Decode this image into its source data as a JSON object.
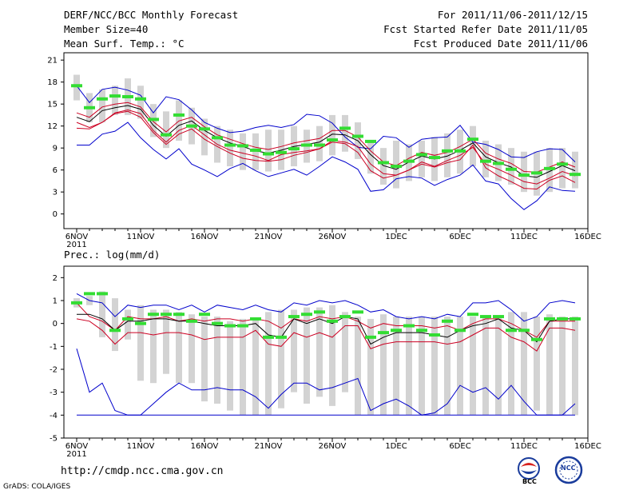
{
  "header": {
    "title": "DERF/NCC/BCC Monthly Forecast",
    "member_size": "Member Size=40",
    "variable": "Mean Surf. Temp.: °C",
    "period": "For 2011/11/06-2011/12/15",
    "start_date": "Fcst Started Refer Date 2011/11/05",
    "produced_date": "Fcst Produced Date 2011/11/06"
  },
  "footer": {
    "url": "http://cmdp.ncc.cma.gov.cn",
    "credit": "GrADS: COLA/IGES",
    "logo_left": "BCC",
    "logo_right": "NCC"
  },
  "colors": {
    "box": "#d3d3d3",
    "mean": "#000000",
    "percentile": "#cc0022",
    "extreme": "#0000cc",
    "median": "#33dd33"
  },
  "chart_data": [
    {
      "type": "box-line",
      "title": "Mean Surf. Temp.: °C",
      "ylim": [
        -2,
        22
      ],
      "yticks": [
        0,
        3,
        6,
        9,
        12,
        15,
        18,
        21
      ],
      "xtick_labels": [
        "6NOV\n2011",
        "11NOV",
        "16NOV",
        "21NOV",
        "26NOV",
        "1DEC",
        "6DEC",
        "11DEC",
        "16DEC"
      ],
      "xtick_days": [
        1,
        6,
        11,
        16,
        21,
        26,
        31,
        36,
        41
      ],
      "days": [
        1,
        2,
        3,
        4,
        5,
        6,
        7,
        8,
        9,
        10,
        11,
        12,
        13,
        14,
        15,
        16,
        17,
        18,
        19,
        20,
        21,
        22,
        23,
        24,
        25,
        26,
        27,
        28,
        29,
        30,
        31,
        32,
        33,
        34,
        35,
        36,
        37,
        38,
        39,
        40
      ],
      "series": [
        {
          "name": "box_low",
          "values": [
            15.5,
            12.5,
            12.5,
            13.5,
            13.5,
            13,
            10.5,
            9,
            10,
            9.5,
            8,
            7,
            6.5,
            6,
            6,
            5.8,
            6,
            6.5,
            7,
            7.2,
            8,
            8.5,
            7.5,
            5.5,
            4,
            3.5,
            4.5,
            5,
            4.5,
            5,
            5.5,
            6.5,
            5,
            4.5,
            4,
            3,
            2.5,
            3,
            3.5,
            3.5
          ]
        },
        {
          "name": "box_high",
          "values": [
            19,
            16.5,
            17,
            17.5,
            18.5,
            17.5,
            15,
            14,
            15.5,
            14.5,
            13,
            12,
            11.5,
            11,
            11,
            11.5,
            11.5,
            12,
            11.5,
            12,
            13.5,
            13.5,
            12.5,
            10,
            9,
            10,
            9.5,
            10,
            10.5,
            11,
            11.5,
            12,
            10,
            9.5,
            9,
            8.5,
            8.5,
            9,
            9,
            8.5
          ]
        },
        {
          "name": "max",
          "values": [
            17.5,
            15.2,
            17,
            17.3,
            16.9,
            16.2,
            13.8,
            16,
            15.6,
            14.2,
            12.5,
            11.7,
            11.1,
            11.3,
            11.8,
            12.1,
            11.8,
            12.2,
            13.6,
            13.4,
            12.4,
            10.5,
            9.1,
            8.9,
            10.6,
            10.4,
            9.1,
            10.2,
            10.4,
            10.5,
            12.1,
            9.8,
            9.5,
            8.8,
            7.8,
            7.7,
            8.5,
            8.9,
            8.8,
            7.1
          ]
        },
        {
          "name": "p90",
          "values": [
            13.8,
            13.2,
            14.6,
            15,
            15.2,
            14.6,
            12.6,
            11.2,
            12.7,
            13.2,
            11.9,
            10.8,
            10.2,
            9.6,
            9.1,
            8.8,
            9.2,
            9.7,
            10,
            10.3,
            11.4,
            11.4,
            10.5,
            8.6,
            7.1,
            6.6,
            7.6,
            8.4,
            8,
            8.4,
            9.2,
            10.2,
            8.3,
            7.5,
            6.9,
            5.8,
            5.7,
            6.4,
            7.1,
            6.4
          ]
        },
        {
          "name": "mean",
          "values": [
            13.2,
            12.6,
            14.1,
            14.5,
            14.8,
            14.3,
            12.1,
            10.6,
            12.1,
            12.7,
            11.4,
            10.4,
            9.7,
            9.2,
            8.6,
            8.3,
            8.7,
            9.2,
            9.5,
            9.8,
            10.9,
            10.8,
            10,
            8.1,
            6.6,
            6.1,
            7.1,
            7.9,
            7.5,
            7.9,
            8.7,
            9.7,
            7.8,
            7,
            6.4,
            5.2,
            5,
            5.8,
            6.6,
            5.9
          ]
        },
        {
          "name": "p10",
          "values": [
            12.5,
            11.8,
            12.5,
            13.8,
            14.2,
            13.7,
            11.4,
            9.8,
            11.4,
            12.1,
            10.8,
            9.5,
            8.7,
            8.3,
            7.9,
            7.3,
            8.1,
            8.4,
            8.6,
            8.9,
            10,
            9.8,
            9.2,
            6.8,
            5.5,
            5.3,
            6,
            7.1,
            6.5,
            7.3,
            8,
            9.1,
            6.8,
            6.1,
            5.3,
            4.4,
            4.1,
            4.9,
            5.8,
            5.2
          ]
        },
        {
          "name": "p10_lower",
          "values": [
            11.7,
            11.6,
            12.5,
            13.7,
            14,
            13.2,
            11.1,
            9.5,
            10.9,
            11.6,
            10.2,
            9.2,
            8.3,
            7.6,
            7.3,
            7.2,
            7.4,
            8,
            8.4,
            8.9,
            9.8,
            9.6,
            8.4,
            5.9,
            4.9,
            5.3,
            6,
            6.8,
            6.4,
            7,
            7.4,
            9.4,
            6.3,
            5.2,
            4.4,
            3.5,
            3.4,
            4.6,
            5.2,
            4.3
          ]
        },
        {
          "name": "min",
          "values": [
            9.4,
            9.4,
            10.9,
            11.3,
            12.5,
            10.4,
            8.8,
            7.5,
            8.9,
            6.8,
            6,
            5.1,
            6.2,
            6.9,
            5.9,
            5.1,
            5.6,
            6.1,
            5.3,
            6.5,
            7.8,
            7.1,
            6.1,
            3.1,
            3.3,
            4.8,
            5.1,
            4.9,
            3.9,
            4.7,
            5.3,
            6.7,
            4.5,
            4.1,
            2.1,
            0.6,
            1.8,
            3.7,
            3.2,
            3.1
          ]
        },
        {
          "name": "median",
          "values": [
            17.5,
            14.5,
            15.7,
            16.1,
            16,
            15.7,
            12.9,
            10.8,
            13.5,
            12,
            11.6,
            10.4,
            9.4,
            9.3,
            8.7,
            8.2,
            8.4,
            8.9,
            9.4,
            9.4,
            10.1,
            11.7,
            10.6,
            9.9,
            7,
            6.5,
            7.2,
            8.1,
            7.7,
            8.6,
            8.6,
            10.2,
            7.2,
            6.9,
            6.1,
            5.3,
            5.6,
            6.2,
            6.8,
            5.4
          ]
        }
      ]
    },
    {
      "type": "box-line",
      "title": "Prec.: log(mm/d)",
      "ylim": [
        -5,
        2.5
      ],
      "yticks": [
        -5,
        -4,
        -3,
        -2,
        -1,
        0,
        1,
        2
      ],
      "xtick_labels": [
        "6NOV\n2011",
        "11NOV",
        "16NOV",
        "21NOV",
        "26NOV",
        "1DEC",
        "6DEC",
        "11DEC",
        "16DEC"
      ],
      "xtick_days": [
        1,
        6,
        11,
        16,
        21,
        26,
        31,
        36,
        41
      ],
      "days": [
        1,
        2,
        3,
        4,
        5,
        6,
        7,
        8,
        9,
        10,
        11,
        12,
        13,
        14,
        15,
        16,
        17,
        18,
        19,
        20,
        21,
        22,
        23,
        24,
        25,
        26,
        27,
        28,
        29,
        30,
        31,
        32,
        33,
        34,
        35,
        36,
        37,
        38,
        39,
        40
      ],
      "series": [
        {
          "name": "box_low",
          "values": [
            0.7,
            0.8,
            -0.6,
            -1.2,
            -0.7,
            -2.5,
            -2.6,
            -2.2,
            -2.6,
            -2.6,
            -3.4,
            -3.5,
            -3.8,
            -4,
            -4,
            -4,
            -3.7,
            -3,
            -3.5,
            -3.2,
            -3.6,
            -3,
            -4,
            -4,
            -4,
            -4,
            -4,
            -4,
            -4,
            -4,
            -4,
            -4,
            -4,
            -4,
            -4,
            -4,
            -3.8,
            -4,
            -4,
            -4
          ]
        },
        {
          "name": "box_high",
          "values": [
            1.1,
            1.2,
            1.4,
            1.1,
            0.6,
            0.8,
            0.6,
            0.6,
            0.5,
            0.4,
            0.3,
            0.3,
            0.1,
            0.2,
            0.2,
            0.5,
            0.6,
            0.6,
            0.7,
            0.7,
            0.8,
            0.5,
            0.3,
            0.2,
            0.4,
            0.3,
            0.3,
            0.3,
            0.3,
            0.3,
            0.3,
            0.3,
            0.3,
            0.3,
            0.5,
            0.5,
            0.3,
            0.4,
            0.3,
            0.3
          ]
        },
        {
          "name": "max",
          "values": [
            1.3,
            1.0,
            0.9,
            0.3,
            0.8,
            0.7,
            0.8,
            0.8,
            0.6,
            0.8,
            0.5,
            0.8,
            0.7,
            0.6,
            0.8,
            0.6,
            0.5,
            0.9,
            0.8,
            1.0,
            0.9,
            1.0,
            0.8,
            0.5,
            0.6,
            0.3,
            0.2,
            0.3,
            0.2,
            0.4,
            0.3,
            0.9,
            0.9,
            1.0,
            0.6,
            0.1,
            0.3,
            0.9,
            1.0,
            0.9
          ]
        },
        {
          "name": "p90",
          "values": [
            0.9,
            0.3,
            0.1,
            -0.3,
            0.3,
            0.2,
            0.2,
            0.3,
            0.1,
            0.2,
            0.1,
            0.2,
            0.2,
            0.1,
            0.2,
            0.1,
            -0.2,
            0.2,
            0.1,
            0.3,
            0.2,
            0.3,
            0.1,
            -0.2,
            0,
            -0.1,
            -0.1,
            -0.1,
            -0.2,
            -0.1,
            -0.3,
            0,
            0.2,
            0.2,
            0,
            -0.3,
            -0.6,
            0.1,
            0.1,
            0.1
          ]
        },
        {
          "name": "mean",
          "values": [
            0.4,
            0.4,
            0.2,
            -0.3,
            0.1,
            0.1,
            0.2,
            0.2,
            0.1,
            0.1,
            0,
            -0.1,
            -0.1,
            -0.1,
            0,
            -0.5,
            -0.6,
            0.2,
            0,
            0.2,
            0,
            0.3,
            0.2,
            -0.9,
            -0.6,
            -0.4,
            -0.4,
            -0.4,
            -0.5,
            -0.6,
            -0.3,
            -0.1,
            0,
            0.2,
            -0.2,
            -0.3,
            -0.8,
            0.1,
            0.2,
            0.2
          ]
        },
        {
          "name": "p10",
          "values": [
            0.2,
            0.1,
            -0.3,
            -0.9,
            -0.4,
            -0.4,
            -0.5,
            -0.4,
            -0.4,
            -0.5,
            -0.7,
            -0.6,
            -0.6,
            -0.6,
            -0.3,
            -0.9,
            -1,
            -0.4,
            -0.6,
            -0.4,
            -0.6,
            -0.1,
            -0.1,
            -1.1,
            -0.9,
            -0.8,
            -0.8,
            -0.8,
            -0.8,
            -0.9,
            -0.8,
            -0.5,
            -0.2,
            -0.2,
            -0.6,
            -0.8,
            -1.2,
            -0.2,
            -0.2,
            -0.3
          ]
        },
        {
          "name": "min",
          "values": [
            -1.1,
            -3,
            -2.6,
            -3.8,
            -4,
            -4,
            -3.5,
            -3,
            -2.6,
            -2.9,
            -2.9,
            -2.8,
            -2.9,
            -2.9,
            -3.2,
            -3.7,
            -3.1,
            -2.6,
            -2.6,
            -2.9,
            -2.8,
            -2.6,
            -2.4,
            -3.8,
            -3.5,
            -3.3,
            -3.6,
            -4,
            -3.9,
            -3.5,
            -2.7,
            -3,
            -2.8,
            -3.3,
            -2.7,
            -3.4,
            -4,
            -4,
            -4,
            -3.5
          ]
        },
        {
          "name": "floor",
          "values": [
            -4,
            -4,
            -4,
            -4,
            -4,
            -4,
            -4,
            -4,
            -4,
            -4,
            -4,
            -4,
            -4,
            -4,
            -4,
            -4,
            -4,
            -4,
            -4,
            -4,
            -4,
            -4,
            -4,
            -4,
            -4,
            -4,
            -4,
            -4,
            -4,
            -4,
            -4,
            -4,
            -4,
            -4,
            -4,
            -4,
            -4,
            -4,
            -4,
            -4
          ]
        },
        {
          "name": "median",
          "values": [
            0.9,
            1.3,
            1.3,
            -0.3,
            0.2,
            0,
            0.4,
            0.4,
            0.4,
            0.1,
            0.4,
            0,
            -0.1,
            -0.1,
            0.2,
            -0.6,
            -0.6,
            0.3,
            0.4,
            0.5,
            0.1,
            0.3,
            0.5,
            -0.6,
            -0.4,
            -0.3,
            -0.1,
            -0.3,
            -0.5,
            0.1,
            -0.3,
            0.4,
            0.3,
            0.3,
            -0.3,
            -0.3,
            -0.7,
            0.2,
            0.2,
            0.2
          ]
        }
      ]
    }
  ]
}
